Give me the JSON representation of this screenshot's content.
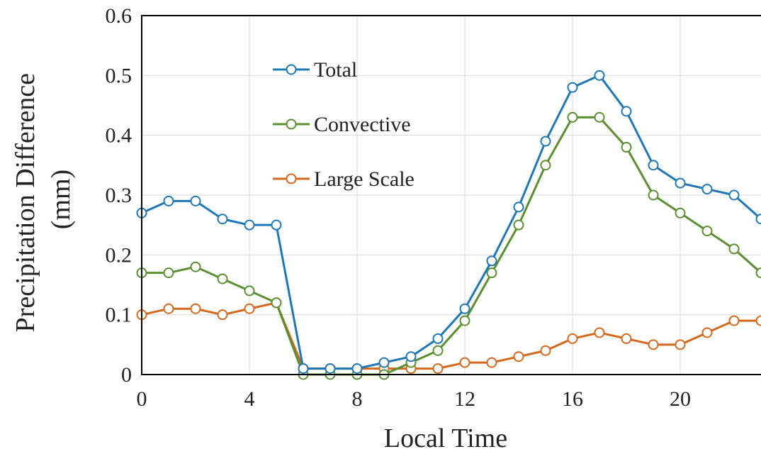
{
  "chart_data": {
    "type": "line",
    "xlabel": "Local Time",
    "ylabel_lines": [
      "Precipitation Difference",
      "(mm)"
    ],
    "xlim": [
      0,
      23
    ],
    "ylim": [
      0,
      0.6
    ],
    "x_ticks": [
      0,
      4,
      8,
      12,
      16,
      20
    ],
    "x_tick_labels": [
      "0",
      "4",
      "8",
      "12",
      "16",
      "20"
    ],
    "y_ticks": [
      0,
      0.1,
      0.2,
      0.3,
      0.4,
      0.5,
      0.6
    ],
    "y_tick_labels": [
      "0",
      "0.1",
      "0.2",
      "0.3",
      "0.4",
      "0.5",
      "0.6"
    ],
    "grid": "vertical and horizontal major gridlines",
    "legend_position": "top-left inside plot",
    "x": [
      0,
      1,
      2,
      3,
      4,
      5,
      6,
      7,
      8,
      9,
      10,
      11,
      12,
      13,
      14,
      15,
      16,
      17,
      18,
      19,
      20,
      21,
      22,
      23
    ],
    "series": [
      {
        "name": "Total",
        "color": "#1f77b4",
        "values": [
          0.27,
          0.29,
          0.29,
          0.26,
          0.25,
          0.25,
          0.01,
          0.01,
          0.01,
          0.02,
          0.03,
          0.06,
          0.11,
          0.19,
          0.28,
          0.39,
          0.48,
          0.5,
          0.44,
          0.35,
          0.32,
          0.31,
          0.3,
          0.26
        ]
      },
      {
        "name": "Convective",
        "color": "#5b8f32",
        "values": [
          0.17,
          0.17,
          0.18,
          0.16,
          0.14,
          0.12,
          0.0,
          0.0,
          0.0,
          0.0,
          0.02,
          0.04,
          0.09,
          0.17,
          0.25,
          0.35,
          0.43,
          0.43,
          0.38,
          0.3,
          0.27,
          0.24,
          0.21,
          0.17
        ]
      },
      {
        "name": "Large Scale",
        "color": "#d2691e",
        "values": [
          0.1,
          0.11,
          0.11,
          0.1,
          0.11,
          0.12,
          0.01,
          0.01,
          0.01,
          0.01,
          0.01,
          0.01,
          0.02,
          0.02,
          0.03,
          0.04,
          0.06,
          0.07,
          0.06,
          0.05,
          0.05,
          0.07,
          0.09,
          0.09
        ]
      }
    ]
  }
}
